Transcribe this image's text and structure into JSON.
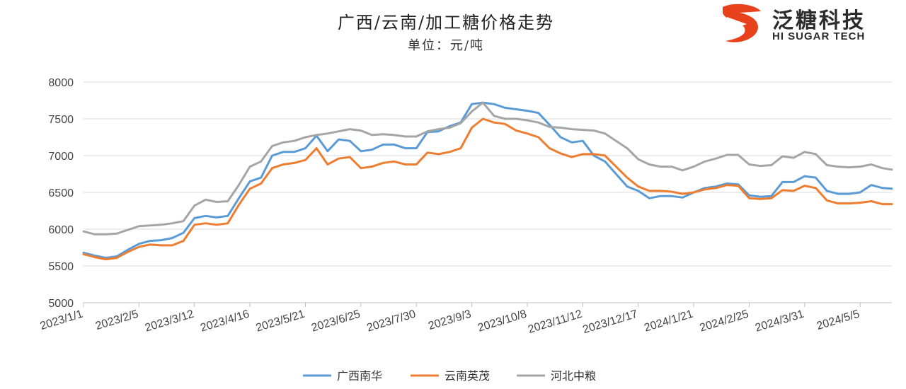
{
  "header": {
    "title": "广西/云南/加工糖价格走势",
    "subtitle": "单位：元/吨"
  },
  "logo": {
    "name": "泛糖科技",
    "english": "HI SUGAR TECH"
  },
  "colors": {
    "series_guangxi": "#5b9bd5",
    "series_yunnan": "#ed7d31",
    "series_hebei": "#a5a5a5",
    "logo_red": "#e8421d"
  },
  "chart_data": {
    "type": "line",
    "title": "广西/云南/加工糖价格走势",
    "subtitle": "单位：元/吨",
    "ylim": [
      5000,
      8000
    ],
    "yticks": [
      5000,
      5500,
      6000,
      6500,
      7000,
      7500,
      8000
    ],
    "x_range": [
      "2023-01-01",
      "2024-05-25"
    ],
    "xtick_labels": [
      "2023/1/1",
      "2023/2/5",
      "2023/3/12",
      "2023/4/16",
      "2023/5/21",
      "2023/6/25",
      "2023/7/30",
      "2023/9/3",
      "2023/10/8",
      "2023/11/12",
      "2023/12/17",
      "2024/1/21",
      "2024/2/25",
      "2024/3/31",
      "2024/5/5"
    ],
    "grid": "horizontal",
    "legend": "bottom",
    "series": [
      {
        "name": "广西南华",
        "points": [
          [
            "2023-01-01",
            5680
          ],
          [
            "2023-01-08",
            5640
          ],
          [
            "2023-01-15",
            5610
          ],
          [
            "2023-01-22",
            5630
          ],
          [
            "2023-01-29",
            5720
          ],
          [
            "2023-02-05",
            5800
          ],
          [
            "2023-02-12",
            5840
          ],
          [
            "2023-02-19",
            5850
          ],
          [
            "2023-02-26",
            5880
          ],
          [
            "2023-03-05",
            5950
          ],
          [
            "2023-03-12",
            6150
          ],
          [
            "2023-03-19",
            6180
          ],
          [
            "2023-03-26",
            6160
          ],
          [
            "2023-04-02",
            6180
          ],
          [
            "2023-04-09",
            6420
          ],
          [
            "2023-04-16",
            6650
          ],
          [
            "2023-04-23",
            6700
          ],
          [
            "2023-04-30",
            7000
          ],
          [
            "2023-05-07",
            7050
          ],
          [
            "2023-05-14",
            7050
          ],
          [
            "2023-05-21",
            7100
          ],
          [
            "2023-05-28",
            7270
          ],
          [
            "2023-06-04",
            7060
          ],
          [
            "2023-06-11",
            7220
          ],
          [
            "2023-06-18",
            7200
          ],
          [
            "2023-06-25",
            7060
          ],
          [
            "2023-07-02",
            7080
          ],
          [
            "2023-07-09",
            7150
          ],
          [
            "2023-07-16",
            7150
          ],
          [
            "2023-07-23",
            7100
          ],
          [
            "2023-07-30",
            7100
          ],
          [
            "2023-08-06",
            7320
          ],
          [
            "2023-08-13",
            7330
          ],
          [
            "2023-08-20",
            7400
          ],
          [
            "2023-08-27",
            7450
          ],
          [
            "2023-09-03",
            7700
          ],
          [
            "2023-09-10",
            7720
          ],
          [
            "2023-09-17",
            7700
          ],
          [
            "2023-09-24",
            7650
          ],
          [
            "2023-10-01",
            7630
          ],
          [
            "2023-10-08",
            7610
          ],
          [
            "2023-10-15",
            7580
          ],
          [
            "2023-10-22",
            7420
          ],
          [
            "2023-10-29",
            7250
          ],
          [
            "2023-11-05",
            7180
          ],
          [
            "2023-11-12",
            7200
          ],
          [
            "2023-11-19",
            7000
          ],
          [
            "2023-11-26",
            6920
          ],
          [
            "2023-12-03",
            6750
          ],
          [
            "2023-12-10",
            6580
          ],
          [
            "2023-12-17",
            6520
          ],
          [
            "2023-12-24",
            6420
          ],
          [
            "2023-12-31",
            6450
          ],
          [
            "2024-01-07",
            6450
          ],
          [
            "2024-01-14",
            6430
          ],
          [
            "2024-01-21",
            6500
          ],
          [
            "2024-01-28",
            6560
          ],
          [
            "2024-02-04",
            6580
          ],
          [
            "2024-02-11",
            6620
          ],
          [
            "2024-02-18",
            6610
          ],
          [
            "2024-02-25",
            6460
          ],
          [
            "2024-03-03",
            6440
          ],
          [
            "2024-03-10",
            6450
          ],
          [
            "2024-03-17",
            6640
          ],
          [
            "2024-03-24",
            6640
          ],
          [
            "2024-03-31",
            6720
          ],
          [
            "2024-04-07",
            6700
          ],
          [
            "2024-04-14",
            6520
          ],
          [
            "2024-04-21",
            6480
          ],
          [
            "2024-04-28",
            6480
          ],
          [
            "2024-05-05",
            6500
          ],
          [
            "2024-05-12",
            6600
          ],
          [
            "2024-05-19",
            6560
          ],
          [
            "2024-05-25",
            6550
          ]
        ]
      },
      {
        "name": "云南英茂",
        "points": [
          [
            "2023-01-01",
            5660
          ],
          [
            "2023-01-08",
            5620
          ],
          [
            "2023-01-15",
            5590
          ],
          [
            "2023-01-22",
            5610
          ],
          [
            "2023-01-29",
            5690
          ],
          [
            "2023-02-05",
            5760
          ],
          [
            "2023-02-12",
            5790
          ],
          [
            "2023-02-19",
            5780
          ],
          [
            "2023-02-26",
            5780
          ],
          [
            "2023-03-05",
            5840
          ],
          [
            "2023-03-12",
            6060
          ],
          [
            "2023-03-19",
            6080
          ],
          [
            "2023-03-26",
            6060
          ],
          [
            "2023-04-02",
            6080
          ],
          [
            "2023-04-09",
            6330
          ],
          [
            "2023-04-16",
            6550
          ],
          [
            "2023-04-23",
            6620
          ],
          [
            "2023-04-30",
            6830
          ],
          [
            "2023-05-07",
            6880
          ],
          [
            "2023-05-14",
            6900
          ],
          [
            "2023-05-21",
            6940
          ],
          [
            "2023-05-28",
            7100
          ],
          [
            "2023-06-04",
            6880
          ],
          [
            "2023-06-11",
            6960
          ],
          [
            "2023-06-18",
            6980
          ],
          [
            "2023-06-25",
            6830
          ],
          [
            "2023-07-02",
            6850
          ],
          [
            "2023-07-09",
            6900
          ],
          [
            "2023-07-16",
            6920
          ],
          [
            "2023-07-23",
            6880
          ],
          [
            "2023-07-30",
            6880
          ],
          [
            "2023-08-06",
            7040
          ],
          [
            "2023-08-13",
            7020
          ],
          [
            "2023-08-20",
            7050
          ],
          [
            "2023-08-27",
            7100
          ],
          [
            "2023-09-03",
            7380
          ],
          [
            "2023-09-10",
            7500
          ],
          [
            "2023-09-17",
            7450
          ],
          [
            "2023-09-24",
            7430
          ],
          [
            "2023-10-01",
            7340
          ],
          [
            "2023-10-08",
            7300
          ],
          [
            "2023-10-15",
            7250
          ],
          [
            "2023-10-22",
            7100
          ],
          [
            "2023-10-29",
            7030
          ],
          [
            "2023-11-05",
            6980
          ],
          [
            "2023-11-12",
            7020
          ],
          [
            "2023-11-19",
            7020
          ],
          [
            "2023-11-26",
            7000
          ],
          [
            "2023-12-03",
            6850
          ],
          [
            "2023-12-10",
            6700
          ],
          [
            "2023-12-17",
            6580
          ],
          [
            "2023-12-24",
            6520
          ],
          [
            "2023-12-31",
            6520
          ],
          [
            "2024-01-07",
            6510
          ],
          [
            "2024-01-14",
            6480
          ],
          [
            "2024-01-21",
            6500
          ],
          [
            "2024-01-28",
            6540
          ],
          [
            "2024-02-04",
            6560
          ],
          [
            "2024-02-11",
            6600
          ],
          [
            "2024-02-18",
            6590
          ],
          [
            "2024-02-25",
            6420
          ],
          [
            "2024-03-03",
            6410
          ],
          [
            "2024-03-10",
            6420
          ],
          [
            "2024-03-17",
            6530
          ],
          [
            "2024-03-24",
            6520
          ],
          [
            "2024-03-31",
            6590
          ],
          [
            "2024-04-07",
            6560
          ],
          [
            "2024-04-14",
            6390
          ],
          [
            "2024-04-21",
            6350
          ],
          [
            "2024-04-28",
            6350
          ],
          [
            "2024-05-05",
            6360
          ],
          [
            "2024-05-12",
            6380
          ],
          [
            "2024-05-19",
            6340
          ],
          [
            "2024-05-25",
            6340
          ]
        ]
      },
      {
        "name": "河北中粮",
        "points": [
          [
            "2023-01-01",
            5970
          ],
          [
            "2023-01-08",
            5930
          ],
          [
            "2023-01-15",
            5930
          ],
          [
            "2023-01-22",
            5940
          ],
          [
            "2023-01-29",
            5990
          ],
          [
            "2023-02-05",
            6040
          ],
          [
            "2023-02-12",
            6050
          ],
          [
            "2023-02-19",
            6060
          ],
          [
            "2023-02-26",
            6080
          ],
          [
            "2023-03-05",
            6110
          ],
          [
            "2023-03-12",
            6320
          ],
          [
            "2023-03-19",
            6400
          ],
          [
            "2023-03-26",
            6370
          ],
          [
            "2023-04-02",
            6380
          ],
          [
            "2023-04-09",
            6600
          ],
          [
            "2023-04-16",
            6850
          ],
          [
            "2023-04-23",
            6920
          ],
          [
            "2023-04-30",
            7130
          ],
          [
            "2023-05-07",
            7180
          ],
          [
            "2023-05-14",
            7200
          ],
          [
            "2023-05-21",
            7250
          ],
          [
            "2023-05-28",
            7280
          ],
          [
            "2023-06-04",
            7300
          ],
          [
            "2023-06-11",
            7330
          ],
          [
            "2023-06-18",
            7360
          ],
          [
            "2023-06-25",
            7340
          ],
          [
            "2023-07-02",
            7280
          ],
          [
            "2023-07-09",
            7290
          ],
          [
            "2023-07-16",
            7280
          ],
          [
            "2023-07-23",
            7260
          ],
          [
            "2023-07-30",
            7260
          ],
          [
            "2023-08-06",
            7330
          ],
          [
            "2023-08-13",
            7360
          ],
          [
            "2023-08-20",
            7380
          ],
          [
            "2023-08-27",
            7440
          ],
          [
            "2023-09-03",
            7600
          ],
          [
            "2023-09-10",
            7720
          ],
          [
            "2023-09-17",
            7540
          ],
          [
            "2023-09-24",
            7500
          ],
          [
            "2023-10-01",
            7500
          ],
          [
            "2023-10-08",
            7480
          ],
          [
            "2023-10-15",
            7450
          ],
          [
            "2023-10-22",
            7390
          ],
          [
            "2023-10-29",
            7380
          ],
          [
            "2023-11-05",
            7360
          ],
          [
            "2023-11-12",
            7350
          ],
          [
            "2023-11-19",
            7340
          ],
          [
            "2023-11-26",
            7300
          ],
          [
            "2023-12-03",
            7200
          ],
          [
            "2023-12-10",
            7100
          ],
          [
            "2023-12-17",
            6950
          ],
          [
            "2023-12-24",
            6880
          ],
          [
            "2023-12-31",
            6850
          ],
          [
            "2024-01-07",
            6850
          ],
          [
            "2024-01-14",
            6800
          ],
          [
            "2024-01-21",
            6850
          ],
          [
            "2024-01-28",
            6920
          ],
          [
            "2024-02-04",
            6960
          ],
          [
            "2024-02-11",
            7010
          ],
          [
            "2024-02-18",
            7010
          ],
          [
            "2024-02-25",
            6880
          ],
          [
            "2024-03-03",
            6860
          ],
          [
            "2024-03-10",
            6870
          ],
          [
            "2024-03-17",
            6990
          ],
          [
            "2024-03-24",
            6970
          ],
          [
            "2024-03-31",
            7050
          ],
          [
            "2024-04-07",
            7020
          ],
          [
            "2024-04-14",
            6870
          ],
          [
            "2024-04-21",
            6850
          ],
          [
            "2024-04-28",
            6840
          ],
          [
            "2024-05-05",
            6850
          ],
          [
            "2024-05-12",
            6880
          ],
          [
            "2024-05-19",
            6830
          ],
          [
            "2024-05-25",
            6810
          ]
        ]
      }
    ]
  }
}
